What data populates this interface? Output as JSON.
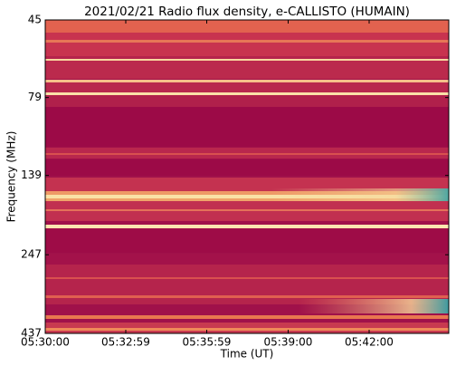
{
  "chart_data": {
    "type": "spectrogram",
    "title": "2021/02/21  Radio flux density, e-CALLISTO (HUMAIN)",
    "xlabel": "Time (UT)",
    "ylabel": "Frequency (MHz)",
    "xlim": [
      19800,
      20697
    ],
    "xticks": [
      {
        "value": 19800,
        "label": "05:30:00"
      },
      {
        "value": 19979,
        "label": "05:32:59"
      },
      {
        "value": 20159,
        "label": "05:35:59"
      },
      {
        "value": 20340,
        "label": "05:39:00"
      },
      {
        "value": 20520,
        "label": "05:42:00"
      }
    ],
    "ylim": [
      45,
      437
    ],
    "yticks": [
      45,
      79,
      139,
      247,
      437
    ],
    "y_log": true,
    "y_reversed": true
  }
}
